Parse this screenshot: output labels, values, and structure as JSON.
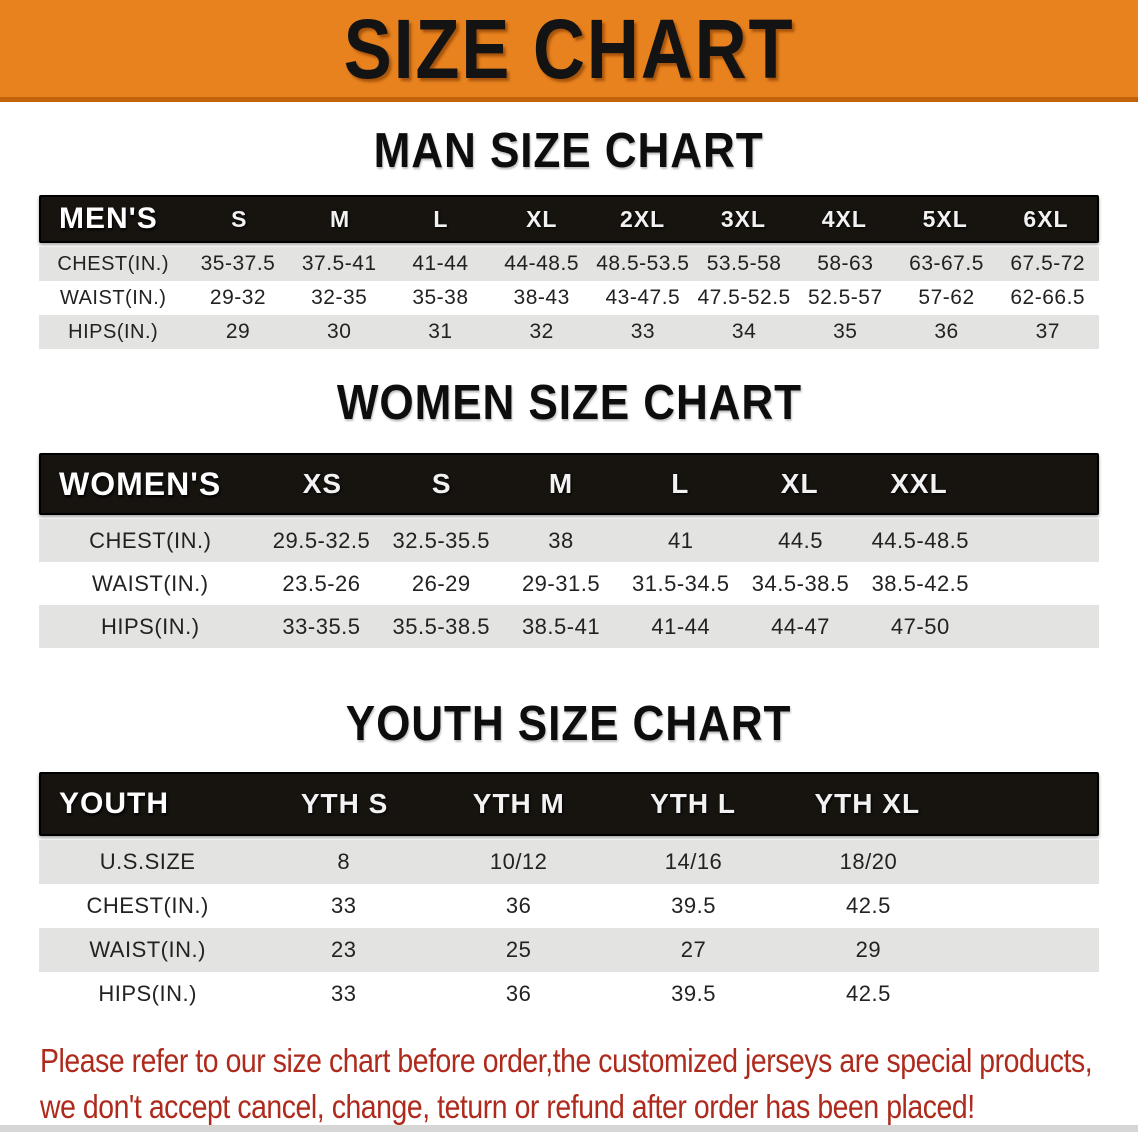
{
  "banner": {
    "title": "SIZE CHART"
  },
  "colors": {
    "banner_orange": "#E8821E",
    "banner_edge": "#C26309",
    "header_black": "#17130F",
    "row_gray": "#E3E3E1",
    "row_white": "#FFFFFF",
    "footer_red": "#AE2A1C"
  },
  "sections": {
    "men": {
      "heading": "MAN SIZE CHART",
      "corner_label": "MEN'S",
      "columns": [
        "S",
        "M",
        "L",
        "XL",
        "2XL",
        "3XL",
        "4XL",
        "5XL",
        "6XL"
      ],
      "rows": [
        {
          "label": "CHEST(IN.)",
          "values": [
            "35-37.5",
            "37.5-41",
            "41-44",
            "44-48.5",
            "48.5-53.5",
            "53.5-58",
            "58-63",
            "63-67.5",
            "67.5-72"
          ]
        },
        {
          "label": "WAIST(IN.)",
          "values": [
            "29-32",
            "32-35",
            "35-38",
            "38-43",
            "43-47.5",
            "47.5-52.5",
            "52.5-57",
            "57-62",
            "62-66.5"
          ]
        },
        {
          "label": "HIPS(IN.)",
          "values": [
            "29",
            "30",
            "31",
            "32",
            "33",
            "34",
            "35",
            "36",
            "37"
          ]
        }
      ]
    },
    "women": {
      "heading": "WOMEN SIZE CHART",
      "corner_label": "WOMEN'S",
      "columns": [
        "XS",
        "S",
        "M",
        "L",
        "XL",
        "XXL"
      ],
      "rows": [
        {
          "label": "CHEST(IN.)",
          "values": [
            "29.5-32.5",
            "32.5-35.5",
            "38",
            "41",
            "44.5",
            "44.5-48.5"
          ]
        },
        {
          "label": "WAIST(IN.)",
          "values": [
            "23.5-26",
            "26-29",
            "29-31.5",
            "31.5-34.5",
            "34.5-38.5",
            "38.5-42.5"
          ]
        },
        {
          "label": "HIPS(IN.)",
          "values": [
            "33-35.5",
            "35.5-38.5",
            "38.5-41",
            "41-44",
            "44-47",
            "47-50"
          ]
        }
      ]
    },
    "youth": {
      "heading": "YOUTH SIZE CHART",
      "corner_label": "YOUTH",
      "columns": [
        "YTH S",
        "YTH M",
        "YTH L",
        "YTH XL"
      ],
      "rows": [
        {
          "label": "U.S.SIZE",
          "values": [
            "8",
            "10/12",
            "14/16",
            "18/20"
          ]
        },
        {
          "label": "CHEST(IN.)",
          "values": [
            "33",
            "36",
            "39.5",
            "42.5"
          ]
        },
        {
          "label": "WAIST(IN.)",
          "values": [
            "23",
            "25",
            "27",
            "29"
          ]
        },
        {
          "label": "HIPS(IN.)",
          "values": [
            "33",
            "36",
            "39.5",
            "42.5"
          ]
        }
      ]
    }
  },
  "footer": {
    "line1": "Please refer to our size chart before order,the customized jerseys are special products,",
    "line2": "we don't accept cancel, change, teturn or refund after order has been placed!"
  }
}
